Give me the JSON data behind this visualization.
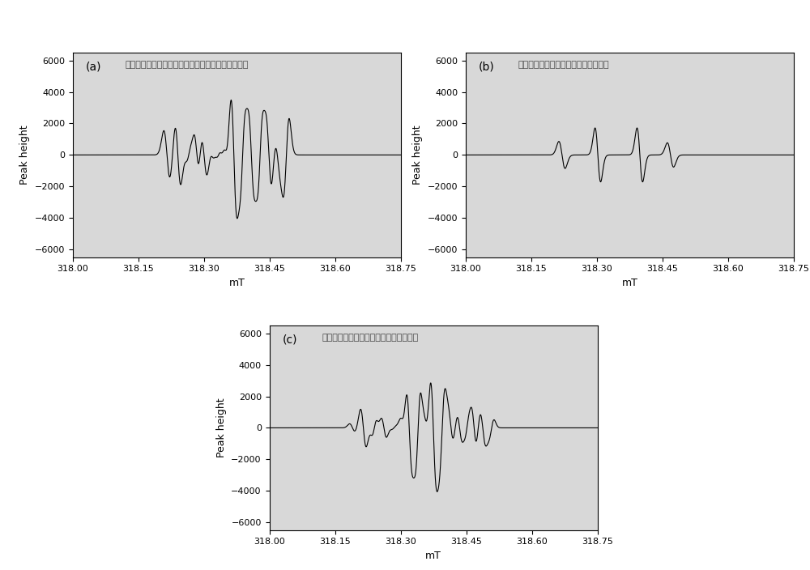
{
  "title_a": "微波激发可磁性分离催化剂催化过一硫酸氢鍹复合盐",
  "title_b": "微波激发可磁性分离催化剂催化双氧水",
  "title_c": "微波激发可磁性分离催化剂催化过硫酸盐",
  "label_a": "(a)",
  "label_b": "(b)",
  "label_c": "(c)",
  "xlabel": "mT",
  "ylabel": "Peak height",
  "xlim": [
    318.0,
    318.75
  ],
  "ylim": [
    -6500,
    6500
  ],
  "yticks": [
    -6000,
    -4000,
    -2000,
    0,
    2000,
    4000,
    6000
  ],
  "xticks": [
    318.0,
    318.15,
    318.3,
    318.45,
    318.6,
    318.75
  ],
  "bg_color": "#d8d8d8",
  "line_color": "#000000",
  "line_width": 0.8
}
